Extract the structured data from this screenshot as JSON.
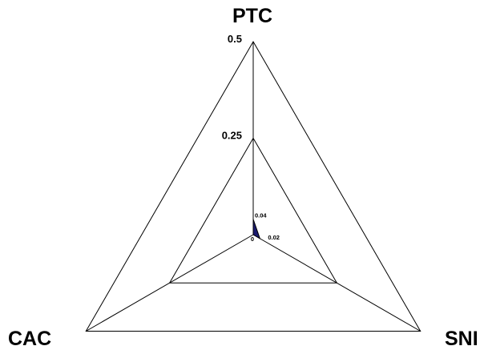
{
  "chart_data": {
    "type": "radar",
    "axes": [
      "PTC",
      "SNI",
      "CAC"
    ],
    "rings": [
      {
        "value": 0.25,
        "label": "0.25"
      },
      {
        "value": 0.5,
        "label": "0.5"
      }
    ],
    "range": [
      0,
      0.5
    ],
    "series": [
      {
        "values": [
          0.04,
          0.02,
          0
        ],
        "value_labels": [
          "0.04",
          "0.02",
          "0"
        ],
        "color": "#1a1a6e"
      }
    ],
    "grid": true,
    "legend": "none"
  }
}
